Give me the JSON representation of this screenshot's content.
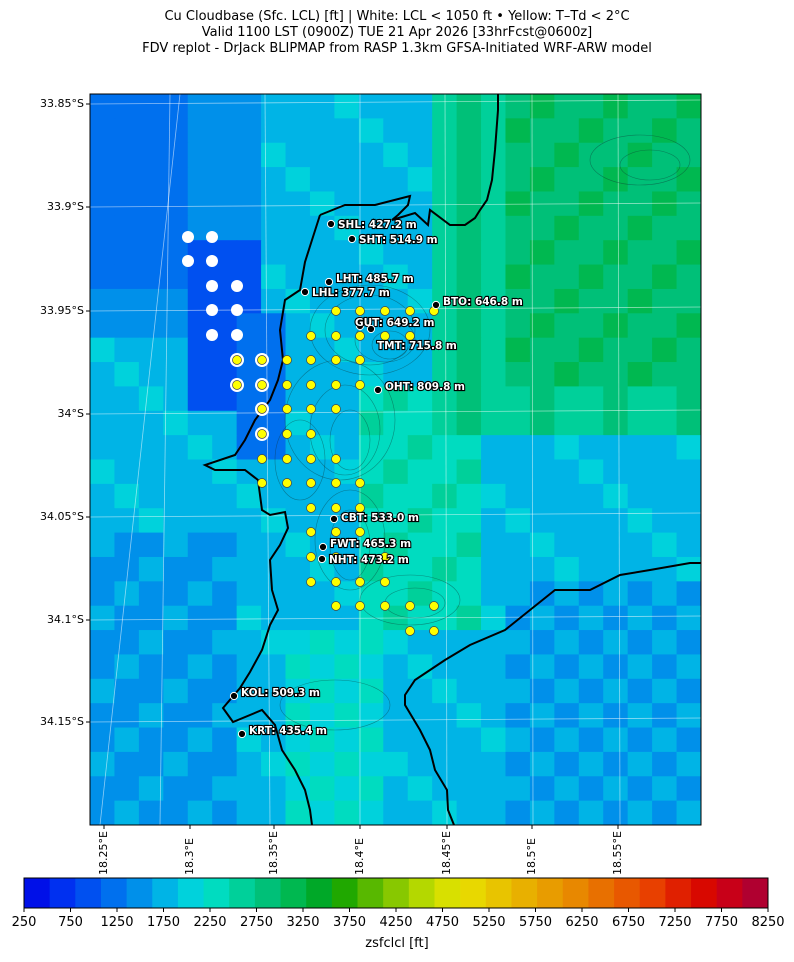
{
  "header": {
    "line1": "Cu Cloudbase (Sfc. LCL) [ft]  |  White: LCL < 1050 ft • Yellow: T–Td < 2°C",
    "line2": "Valid 1100 LST (0900Z) TUE 21 Apr 2026 [33hrFcst@0600z]",
    "line3": "FDV replot - DrJack BLIPMAP from RASP 1.3km GFSA-Initiated WRF-ARW model"
  },
  "axes": {
    "lat_ticks": [
      "33.85°S",
      "33.9°S",
      "33.95°S",
      "34°S",
      "34.05°S",
      "34.1°S",
      "34.15°S"
    ],
    "lon_ticks": [
      "18.25°E",
      "18.3°E",
      "18.35°E",
      "18.4°E",
      "18.45°E",
      "18.5°E",
      "18.55°E"
    ]
  },
  "colorbar": {
    "label": "zsfclcl [ft]",
    "tick_labels": [
      "250",
      "750",
      "1250",
      "1750",
      "2250",
      "2750",
      "3250",
      "3750",
      "4250",
      "4750",
      "5250",
      "5750",
      "6250",
      "6750",
      "7250",
      "7750",
      "8250"
    ],
    "colors": [
      "#0010e8",
      "#0030f0",
      "#0050f0",
      "#0070ee",
      "#0090ea",
      "#00b4e6",
      "#00d2dc",
      "#00dcc0",
      "#00d09a",
      "#00c078",
      "#00b850",
      "#00a828",
      "#20a800",
      "#58b800",
      "#88c800",
      "#b4d800",
      "#d8e000",
      "#e8d800",
      "#e8c400",
      "#e8b000",
      "#e89c00",
      "#e88800",
      "#e87000",
      "#e85800",
      "#e84000",
      "#e02000",
      "#d80800",
      "#c80018",
      "#b00030"
    ]
  },
  "stations": [
    {
      "id": "shl",
      "label": "SHL: 427.2 m"
    },
    {
      "id": "sht",
      "label": "SHT: 514.9 m"
    },
    {
      "id": "lht",
      "label": "LHT: 485.7 m"
    },
    {
      "id": "lhl",
      "label": "LHL: 377.7 m"
    },
    {
      "id": "bto",
      "label": "BTO: 646.8 m"
    },
    {
      "id": "gut",
      "label": "GUT: 649.2 m"
    },
    {
      "id": "tmt",
      "label": "TMT: 715.8 m"
    },
    {
      "id": "oht",
      "label": "OHT: 809.8 m"
    },
    {
      "id": "cbt",
      "label": "CBT: 533.0 m"
    },
    {
      "id": "fwt",
      "label": "FWT: 465.3 m"
    },
    {
      "id": "nht",
      "label": "NHT: 473.2 m"
    },
    {
      "id": "kol",
      "label": "KOL: 509.3 m"
    },
    {
      "id": "krt",
      "label": "KRT: 435.4 m"
    }
  ],
  "legend_colors": {
    "low_lcl_marker": "#ffffff",
    "saturated_marker": "#ffff00",
    "coastline": "#000000"
  }
}
